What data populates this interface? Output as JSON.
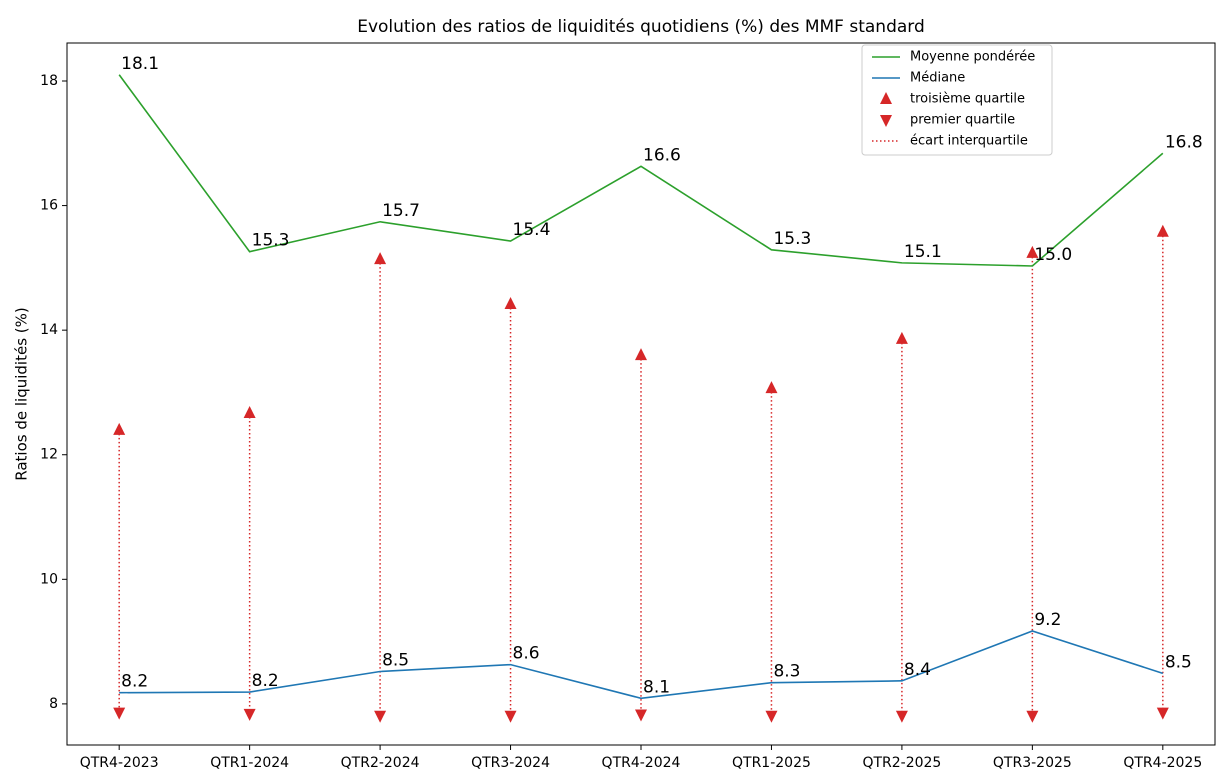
{
  "chart_data": {
    "type": "line",
    "title": "Evolution des ratios de liquidités quotidiens (%) des MMF standard",
    "ylabel": "Ratios de liquidités (%)",
    "categories": [
      "QTR4-2023",
      "QTR1-2024",
      "QTR2-2024",
      "QTR3-2024",
      "QTR4-2024",
      "QTR1-2025",
      "QTR2-2025",
      "QTR3-2025",
      "QTR4-2025"
    ],
    "series": [
      {
        "name": "Moyenne pondérée",
        "color": "#2ca02c",
        "style": "line",
        "values": [
          18.1,
          15.26,
          15.74,
          15.43,
          16.63,
          15.29,
          15.08,
          15.03,
          16.84
        ],
        "value_labels": [
          "18.1",
          "15.3",
          "15.7",
          "15.4",
          "16.6",
          "15.3",
          "15.1",
          "15.0",
          "16.8"
        ]
      },
      {
        "name": "Médiane",
        "color": "#1f77b4",
        "style": "line",
        "values": [
          8.18,
          8.19,
          8.52,
          8.63,
          8.09,
          8.34,
          8.37,
          9.17,
          8.49
        ],
        "value_labels": [
          "8.2",
          "8.2",
          "8.5",
          "8.6",
          "8.1",
          "8.3",
          "8.4",
          "9.2",
          "8.5"
        ]
      },
      {
        "name": "troisième quartile",
        "color": "#d62728",
        "style": "triangle-up",
        "values": [
          12.4,
          12.67,
          15.14,
          14.42,
          13.6,
          13.07,
          13.86,
          15.24,
          15.58
        ]
      },
      {
        "name": "premier quartile",
        "color": "#d62728",
        "style": "triangle-down",
        "values": [
          7.86,
          7.84,
          7.81,
          7.81,
          7.83,
          7.81,
          7.81,
          7.81,
          7.86
        ]
      },
      {
        "name": "écart interquartile",
        "color": "#d62728",
        "style": "dotted"
      }
    ],
    "ylim": [
      7.34,
      18.61
    ],
    "yticks": [
      8,
      10,
      12,
      14,
      16,
      18
    ]
  }
}
